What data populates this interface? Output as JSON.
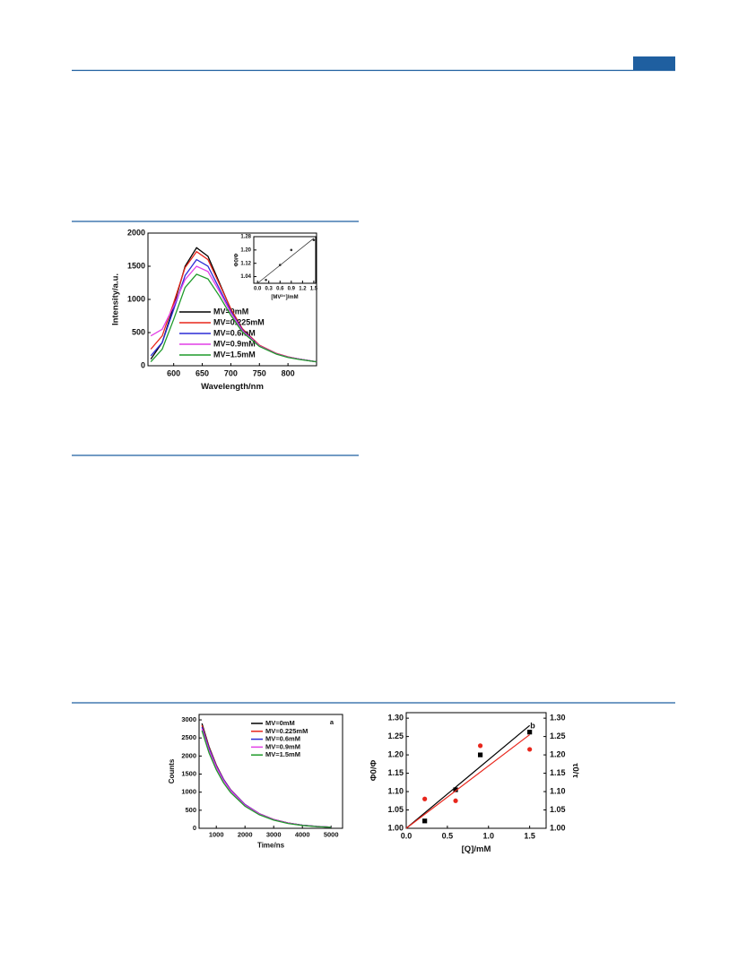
{
  "chart_data": [
    {
      "type": "line",
      "xlabel": "Wavelength/nm",
      "ylabel": "Intensity/a.u.",
      "x": [
        560,
        580,
        600,
        620,
        640,
        660,
        680,
        700,
        720,
        750,
        780,
        800,
        820,
        850
      ],
      "series": [
        {
          "name": "MV=0mM",
          "color": "#000000",
          "values": [
            100,
            350,
            900,
            1500,
            1780,
            1650,
            1250,
            850,
            550,
            300,
            180,
            130,
            100,
            60
          ]
        },
        {
          "name": "MV=0.225mM",
          "color": "#e8261c",
          "values": [
            250,
            450,
            950,
            1480,
            1720,
            1600,
            1230,
            860,
            560,
            310,
            185,
            135,
            100,
            60
          ]
        },
        {
          "name": "MV=0.6mM",
          "color": "#2b2bd6",
          "values": [
            150,
            350,
            850,
            1360,
            1600,
            1500,
            1160,
            820,
            540,
            300,
            180,
            130,
            100,
            60
          ]
        },
        {
          "name": "MV=0.9mM",
          "color": "#e23ee6",
          "values": [
            450,
            550,
            900,
            1300,
            1500,
            1420,
            1120,
            800,
            530,
            300,
            180,
            130,
            100,
            60
          ]
        },
        {
          "name": "MV=1.5mM",
          "color": "#1f9a2a",
          "values": [
            60,
            250,
            700,
            1180,
            1380,
            1310,
            1050,
            760,
            510,
            290,
            175,
            125,
            95,
            60
          ]
        }
      ],
      "xlim": [
        555,
        850
      ],
      "xticks": [
        600,
        650,
        700,
        750,
        800
      ],
      "ylim": [
        0,
        2000
      ],
      "yticks": [
        0,
        500,
        1000,
        1500,
        2000
      ],
      "legend": "lower left"
    },
    {
      "type": "scatter",
      "xlabel": "[MV²⁺]/mM",
      "ylabel": "Φ0/Φ",
      "series": [
        {
          "color": "#333333",
          "x": [
            0.225,
            0.6,
            0.9,
            1.5
          ],
          "values": [
            1.02,
            1.11,
            1.2,
            1.26
          ],
          "fit_x": [
            0,
            1.5
          ],
          "fit_y": [
            1.0,
            1.27
          ]
        }
      ],
      "xlim": [
        -0.1,
        1.55
      ],
      "xticks": [
        {
          "value": 0,
          "label": "0.0"
        },
        0.3,
        0.6,
        0.9,
        1.2,
        1.5
      ],
      "ylim": [
        1.0,
        1.28
      ],
      "yticks": [
        1.04,
        1.12,
        {
          "value": 1.2,
          "label": "1.20"
        },
        1.28
      ]
    },
    {
      "type": "line",
      "xlabel": "Time/ns",
      "ylabel": "Counts",
      "annotation": "a",
      "x": [
        500,
        750,
        1000,
        1250,
        1500,
        2000,
        2500,
        3000,
        3500,
        4000,
        4500,
        5000
      ],
      "series": [
        {
          "name": "MV=0mM",
          "color": "#000000",
          "values": [
            2900,
            2250,
            1750,
            1360,
            1060,
            650,
            400,
            240,
            145,
            85,
            50,
            30
          ]
        },
        {
          "name": "MV=0.225mM",
          "color": "#e8261c",
          "values": [
            2850,
            2230,
            1740,
            1360,
            1070,
            660,
            405,
            245,
            148,
            88,
            52,
            31
          ]
        },
        {
          "name": "MV=0.6mM",
          "color": "#2b2bd6",
          "values": [
            2800,
            2200,
            1720,
            1350,
            1060,
            655,
            402,
            243,
            146,
            86,
            51,
            30
          ]
        },
        {
          "name": "MV=0.9mM",
          "color": "#e23ee6",
          "values": [
            2750,
            2150,
            1690,
            1320,
            1040,
            640,
            395,
            238,
            143,
            84,
            50,
            29
          ]
        },
        {
          "name": "MV=1.5mM",
          "color": "#1f9a2a",
          "values": [
            2700,
            2080,
            1620,
            1260,
            990,
            610,
            375,
            225,
            135,
            80,
            47,
            28
          ]
        }
      ],
      "xlim": [
        400,
        5400
      ],
      "xticks": [
        1000,
        2000,
        3000,
        4000,
        5000
      ],
      "ylim": [
        0,
        3150
      ],
      "yticks": [
        0,
        500,
        1000,
        1500,
        2000,
        2500,
        3000
      ],
      "legend": "upper right"
    },
    {
      "type": "scatter",
      "xlabel": "[Q]/mM",
      "ylabel": "Φ0/Φ",
      "y2label": "τ0/τ",
      "annotation": "b",
      "series": [
        {
          "color": "#000000",
          "marker": "square",
          "x": [
            0.225,
            0.6,
            0.9,
            1.5
          ],
          "values": [
            1.02,
            1.105,
            1.2,
            1.262
          ],
          "fit_x": [
            0,
            1.5
          ],
          "fit_y": [
            1.0,
            1.28
          ]
        },
        {
          "color": "#e8261c",
          "marker": "circle",
          "axis": "y2",
          "x": [
            0.225,
            0.6,
            0.9,
            1.5
          ],
          "values": [
            1.08,
            1.075,
            1.225,
            1.215
          ],
          "fit_x": [
            0,
            1.5
          ],
          "fit_y": [
            1.0,
            1.255
          ]
        }
      ],
      "xlim": [
        0,
        1.7
      ],
      "xticks": [
        {
          "value": 0,
          "label": "0.0"
        },
        0.5,
        {
          "value": 1,
          "label": "1.0"
        },
        1.5
      ],
      "ylim": [
        1.0,
        1.315
      ],
      "yticks": [
        {
          "value": 1,
          "label": "1.00"
        },
        1.05,
        {
          "value": 1.1,
          "label": "1.10"
        },
        1.15,
        {
          "value": 1.2,
          "label": "1.20"
        },
        1.25,
        {
          "value": 1.3,
          "label": "1.30"
        }
      ],
      "y2lim": [
        1.0,
        1.315
      ],
      "y2ticks": [
        {
          "value": 1,
          "label": "1.00"
        },
        1.05,
        {
          "value": 1.1,
          "label": "1.10"
        },
        1.15,
        {
          "value": 1.2,
          "label": "1.20"
        },
        1.25,
        {
          "value": 1.3,
          "label": "1.30"
        }
      ]
    }
  ]
}
